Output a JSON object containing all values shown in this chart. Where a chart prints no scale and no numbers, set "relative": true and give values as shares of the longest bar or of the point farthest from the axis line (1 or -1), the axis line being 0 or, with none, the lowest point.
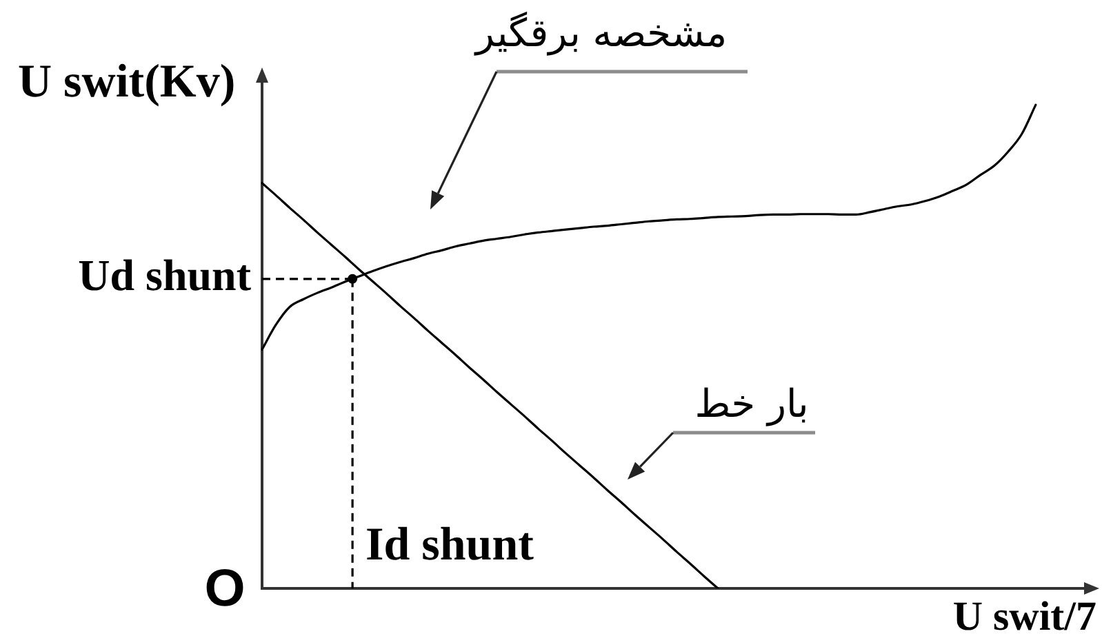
{
  "chart_data": {
    "type": "line",
    "relative": true,
    "ylabel": "U swit(Kv)",
    "xlabel": "U swit/7",
    "categories": [
      null,
      null,
      null,
      null,
      null,
      null,
      null,
      null,
      null,
      null,
      null,
      null,
      null,
      null,
      null,
      null,
      null,
      null,
      null,
      null,
      null,
      null,
      null,
      null,
      null,
      null,
      null,
      null,
      null,
      null,
      null,
      null,
      null,
      null,
      null,
      null,
      null,
      null,
      null,
      null,
      null,
      null,
      null,
      null,
      null,
      null,
      null,
      null,
      null,
      null,
      null,
      null,
      null,
      null,
      null,
      null,
      null,
      null,
      null,
      null,
      null
    ],
    "series": [
      {
        "name": "بار خط",
        "color": "#000000",
        "values": [
          0.838,
          0.813,
          0.787,
          0.762,
          0.736,
          0.711,
          0.686,
          0.66,
          0.635,
          0.61,
          0.584,
          0.559,
          0.533,
          0.508,
          0.483,
          0.457,
          0.432,
          0.406,
          0.381,
          0.356,
          0.33,
          0.305,
          0.279,
          0.254,
          0.229,
          0.203,
          0.178,
          0.152,
          0.127,
          0.102,
          0.076,
          0.051,
          0.025,
          0.0,
          null,
          null,
          null,
          null,
          null,
          null,
          null,
          null,
          null,
          null,
          null,
          null,
          null,
          null,
          null,
          null,
          null,
          null,
          null,
          null,
          null,
          null,
          null,
          null,
          null,
          null,
          null
        ]
      },
      {
        "name": "مشخصه برقگیر",
        "color": "#000000",
        "values": [
          0.494,
          0.545,
          0.582,
          0.598,
          0.611,
          0.622,
          0.634,
          0.645,
          0.656,
          0.666,
          0.675,
          0.683,
          0.692,
          0.699,
          0.707,
          0.713,
          0.719,
          0.723,
          0.727,
          0.732,
          0.736,
          0.739,
          0.742,
          0.745,
          0.748,
          0.75,
          0.753,
          0.756,
          0.759,
          0.761,
          0.763,
          0.764,
          0.766,
          0.768,
          0.769,
          0.77,
          0.772,
          0.773,
          0.773,
          0.774,
          0.774,
          0.774,
          0.773,
          0.773,
          0.778,
          0.784,
          0.79,
          0.794,
          0.801,
          0.81,
          0.822,
          0.835,
          0.855,
          0.874,
          0.903,
          0.94,
          1.0,
          null,
          null,
          null,
          null
        ]
      }
    ],
    "ref_lines": [
      {
        "axis": "y",
        "value": 0.64,
        "label": "Ud shunt",
        "line_style": "dashed",
        "color": "#000000"
      }
    ],
    "annotations": [
      "Id shunt",
      "O"
    ],
    "legend": false,
    "grid": false,
    "marker": "none",
    "line_style": "solid"
  }
}
